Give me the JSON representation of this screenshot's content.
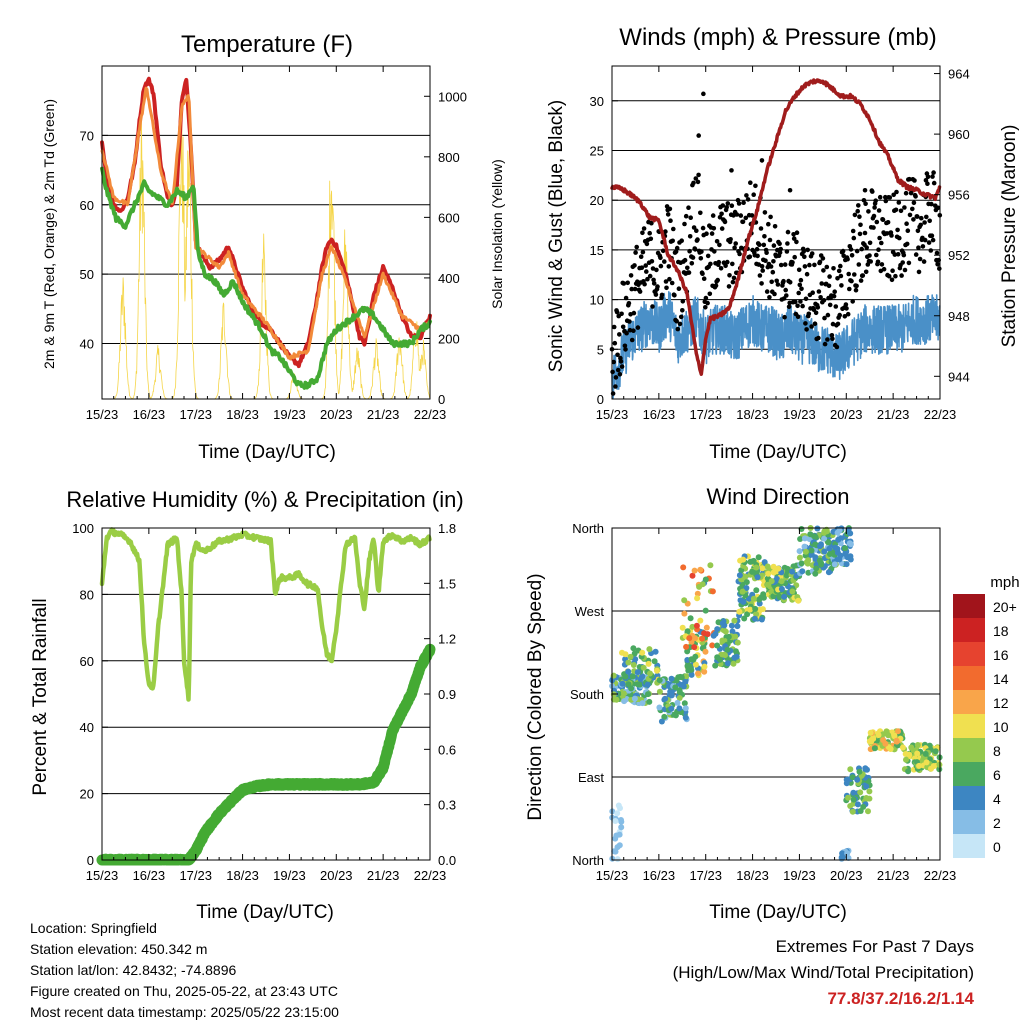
{
  "colors": {
    "temp_2m": "#cc2222",
    "temp_9m": "#f28a3a",
    "dewpoint": "#44aa33",
    "solar": "#f5d547",
    "wind": "#4a90c8",
    "gust": "#000000",
    "pressure": "#a01c1c",
    "rh": "#9acd45",
    "precip": "#44aa33",
    "extremes": "#cc2222"
  },
  "chart_data": [
    {
      "id": "temperature",
      "type": "line",
      "title": "Temperature (F)",
      "xlabel": "Time (Day/UTC)",
      "ylabel": "2m & 9m T (Red, Orange) & 2m Td (Green)",
      "y2label": "Solar Insolation (Yellow)",
      "x_ticks": [
        "15/23",
        "16/23",
        "17/23",
        "18/23",
        "19/23",
        "20/23",
        "21/23",
        "22/23"
      ],
      "xlim": [
        0,
        7
      ],
      "ylim": [
        32,
        80
      ],
      "y_ticks": [
        40,
        50,
        60,
        70
      ],
      "y2lim": [
        0,
        1100
      ],
      "y2_ticks": [
        0,
        200,
        400,
        600,
        800,
        1000
      ],
      "grid": "horizontal",
      "series": [
        {
          "key": "t2m",
          "color": "#cc2222",
          "x": [
            0,
            0.1,
            0.25,
            0.4,
            0.55,
            0.7,
            0.8,
            0.9,
            1.0,
            1.1,
            1.25,
            1.4,
            1.5,
            1.6,
            1.7,
            1.8,
            1.9,
            2.0,
            2.1,
            2.3,
            2.5,
            2.7,
            2.8,
            2.9,
            3.0,
            3.2,
            3.4,
            3.6,
            3.8,
            4.0,
            4.2,
            4.4,
            4.55,
            4.7,
            4.8,
            4.9,
            5.0,
            5.2,
            5.4,
            5.5,
            5.6,
            5.7,
            5.8,
            6.0,
            6.2,
            6.4,
            6.6,
            6.8,
            7.0
          ],
          "y": [
            69,
            64,
            60,
            59,
            61,
            66,
            72,
            77,
            78,
            76,
            66,
            61,
            60,
            63,
            75,
            78,
            68,
            55,
            53,
            51,
            52,
            54,
            52,
            50,
            48,
            45,
            43,
            42,
            40,
            38,
            37,
            40,
            45,
            51,
            54,
            55,
            54,
            50,
            44,
            41,
            40,
            43,
            47,
            51,
            48,
            44,
            41,
            41,
            44
          ]
        },
        {
          "key": "t9m",
          "color": "#f28a3a",
          "x": [
            0,
            0.25,
            0.55,
            0.8,
            0.95,
            1.25,
            1.5,
            1.7,
            1.85,
            2.0,
            2.5,
            2.7,
            3.0,
            3.5,
            4.0,
            4.4,
            4.7,
            4.9,
            5.2,
            5.6,
            6.0,
            6.4,
            6.8,
            7.0
          ],
          "y": [
            68,
            61,
            60,
            71,
            77,
            65,
            60,
            74,
            76,
            54,
            51,
            53,
            47,
            43,
            38,
            39,
            50,
            54,
            49,
            41,
            50,
            44,
            42,
            43
          ]
        },
        {
          "key": "td",
          "color": "#44aa33",
          "x": [
            0,
            0.1,
            0.3,
            0.5,
            0.7,
            0.9,
            1.0,
            1.2,
            1.4,
            1.6,
            1.8,
            1.95,
            2.05,
            2.2,
            2.4,
            2.6,
            2.8,
            3.0,
            3.2,
            3.4,
            3.6,
            3.8,
            4.0,
            4.2,
            4.4,
            4.6,
            4.8,
            5.0,
            5.2,
            5.4,
            5.6,
            5.8,
            6.0,
            6.2,
            6.4,
            6.6,
            6.8,
            7.0
          ],
          "y": [
            65,
            62,
            58,
            57,
            60,
            63,
            62,
            61,
            60,
            62,
            61,
            63,
            53,
            50,
            49,
            47,
            49,
            46,
            44,
            42,
            39,
            38,
            36,
            34,
            34,
            35,
            40,
            42,
            43,
            44,
            45,
            44,
            42,
            40,
            40,
            40,
            42,
            43
          ]
        }
      ],
      "solar": {
        "color": "#f5d547",
        "y2": "insolation",
        "peaks": [
          [
            0.45,
            430
          ],
          [
            0.85,
            1000
          ],
          [
            1.2,
            180
          ],
          [
            1.7,
            1050
          ],
          [
            1.85,
            950
          ],
          [
            2.6,
            350
          ],
          [
            3.45,
            550
          ],
          [
            4.1,
            100
          ],
          [
            4.9,
            950
          ],
          [
            5.2,
            620
          ],
          [
            5.45,
            180
          ],
          [
            5.85,
            200
          ],
          [
            6.35,
            250
          ],
          [
            6.7,
            300
          ],
          [
            6.85,
            200
          ]
        ]
      }
    },
    {
      "id": "winds",
      "type": "scatter",
      "title": "Winds (mph) & Pressure (mb)",
      "xlabel": "Time (Day/UTC)",
      "ylabel": "Sonic Wind & Gust (Blue, Black)",
      "y2label": "Station Pressure (Maroon)",
      "x_ticks": [
        "15/23",
        "16/23",
        "17/23",
        "18/23",
        "19/23",
        "20/23",
        "21/23",
        "22/23"
      ],
      "xlim": [
        0,
        7
      ],
      "ylim": [
        0,
        33.5
      ],
      "y_ticks": [
        0,
        5,
        10,
        15,
        20,
        25,
        30
      ],
      "y2lim": [
        942.5,
        964.5
      ],
      "y2_ticks": [
        944,
        948,
        952,
        956,
        960,
        964
      ],
      "grid": "horizontal",
      "wind_mean": {
        "color": "#4a90c8",
        "x": [
          0,
          0.2,
          0.4,
          0.6,
          0.8,
          1.0,
          1.2,
          1.4,
          1.6,
          1.8,
          2.0,
          2.2,
          2.4,
          2.6,
          2.8,
          3.0,
          3.2,
          3.4,
          3.6,
          3.8,
          4.0,
          4.2,
          4.4,
          4.6,
          4.8,
          5.0,
          5.2,
          5.4,
          5.6,
          5.8,
          6.0,
          6.2,
          6.4,
          6.6,
          6.8,
          7.0
        ],
        "y": [
          2,
          4,
          6,
          7,
          8,
          7,
          9,
          6,
          7,
          8,
          6,
          7,
          7,
          6,
          7,
          8,
          7,
          7,
          6,
          7,
          6,
          6,
          5,
          5,
          4,
          5,
          6,
          7,
          7,
          7,
          7,
          7,
          8,
          8,
          8,
          8
        ]
      },
      "gust": {
        "color": "#000000",
        "x": [
          0,
          0.2,
          0.4,
          0.6,
          0.8,
          1.0,
          1.2,
          1.4,
          1.6,
          1.8,
          2.0,
          2.2,
          2.4,
          2.6,
          2.8,
          3.0,
          3.2,
          3.4,
          3.6,
          3.8,
          4.0,
          4.2,
          4.4,
          4.6,
          4.8,
          5.0,
          5.2,
          5.4,
          5.6,
          5.8,
          6.0,
          6.2,
          6.4,
          6.6,
          6.8,
          7.0
        ],
        "y": [
          4,
          7,
          10,
          12,
          14,
          13,
          16,
          11,
          15,
          20,
          12,
          15,
          16,
          15,
          17,
          18,
          16,
          14,
          12,
          13,
          12,
          11,
          10,
          10,
          9,
          12,
          15,
          16,
          17,
          16,
          16,
          17,
          18,
          17,
          19,
          17
        ],
        "peaks": [
          [
            1.95,
            30.7
          ],
          [
            1.85,
            26.5
          ],
          [
            2.55,
            23
          ],
          [
            3.2,
            24
          ],
          [
            3.8,
            21
          ],
          [
            5.4,
            21
          ],
          [
            6.7,
            22
          ]
        ]
      },
      "pressure": {
        "color": "#a01c1c",
        "x": [
          0,
          0.2,
          0.4,
          0.6,
          0.8,
          1.0,
          1.2,
          1.4,
          1.6,
          1.8,
          1.9,
          2.0,
          2.1,
          2.3,
          2.5,
          2.7,
          2.9,
          3.1,
          3.3,
          3.5,
          3.7,
          3.9,
          4.1,
          4.3,
          4.5,
          4.7,
          4.9,
          5.1,
          5.3,
          5.5,
          5.7,
          5.9,
          6.1,
          6.3,
          6.5,
          6.7,
          6.9,
          7.0
        ],
        "y": [
          956.5,
          956.4,
          956,
          955.5,
          954.5,
          954.3,
          952,
          951,
          949.5,
          945.5,
          944.1,
          946.5,
          947.8,
          948,
          948.5,
          950.5,
          953,
          955,
          957.5,
          959.5,
          961.5,
          962.5,
          963.2,
          963.5,
          963.5,
          963,
          962.5,
          962.5,
          962,
          961,
          959.5,
          958.5,
          957,
          956.5,
          956.3,
          956,
          955.8,
          956.5
        ]
      }
    },
    {
      "id": "humidity",
      "type": "line",
      "title": "Relative Humidity (%) & Precipitation (in)",
      "xlabel": "Time (Day/UTC)",
      "ylabel": "Percent & Total Rainfall",
      "x_ticks": [
        "15/23",
        "16/23",
        "17/23",
        "18/23",
        "19/23",
        "20/23",
        "21/23",
        "22/23"
      ],
      "xlim": [
        0,
        7
      ],
      "ylim": [
        0,
        100
      ],
      "y_ticks": [
        0,
        20,
        40,
        60,
        80,
        100
      ],
      "y2lim": [
        0,
        1.8
      ],
      "y2_ticks": [
        "0.0",
        "0.3",
        "0.6",
        "0.9",
        "1.2",
        "1.5",
        "1.8"
      ],
      "grid": "horizontal",
      "rh": {
        "color": "#9acd45",
        "x": [
          0,
          0.1,
          0.2,
          0.4,
          0.6,
          0.8,
          0.9,
          1.0,
          1.1,
          1.2,
          1.4,
          1.6,
          1.7,
          1.75,
          1.8,
          1.85,
          1.9,
          2.0,
          2.2,
          2.5,
          2.8,
          3.0,
          3.3,
          3.6,
          3.7,
          3.8,
          4.0,
          4.2,
          4.4,
          4.6,
          4.7,
          4.8,
          4.9,
          5.0,
          5.2,
          5.4,
          5.5,
          5.6,
          5.7,
          5.8,
          5.9,
          6.0,
          6.2,
          6.4,
          6.6,
          6.8,
          7.0
        ],
        "y": [
          83,
          97,
          99,
          98,
          96,
          90,
          65,
          53,
          52,
          70,
          95,
          97,
          80,
          60,
          55,
          48,
          90,
          95,
          93,
          96,
          97,
          98,
          97,
          96,
          80,
          85,
          85,
          86,
          83,
          82,
          70,
          62,
          60,
          70,
          95,
          97,
          83,
          76,
          90,
          97,
          80,
          96,
          98,
          96,
          97,
          95,
          97
        ]
      },
      "precip": {
        "color": "#44aa33",
        "x": [
          0,
          0.5,
          1.0,
          1.5,
          1.85,
          2.0,
          2.2,
          2.5,
          2.8,
          3.0,
          3.3,
          3.6,
          4.0,
          4.5,
          5.0,
          5.5,
          5.8,
          6.0,
          6.2,
          6.4,
          6.6,
          6.8,
          7.0
        ],
        "y": [
          0,
          0,
          0,
          0,
          0,
          0.05,
          0.15,
          0.25,
          0.33,
          0.38,
          0.4,
          0.41,
          0.41,
          0.41,
          0.41,
          0.41,
          0.42,
          0.5,
          0.7,
          0.8,
          0.9,
          1.05,
          1.14
        ]
      }
    },
    {
      "id": "direction",
      "type": "scatter",
      "title": "Wind Direction",
      "xlabel": "Time (Day/UTC)",
      "ylabel": "Direction (Colored By Speed)",
      "x_ticks": [
        "15/23",
        "16/23",
        "17/23",
        "18/23",
        "19/23",
        "20/23",
        "21/23",
        "22/23"
      ],
      "xlim": [
        0,
        7
      ],
      "ylim": [
        0,
        360
      ],
      "y_tick_labels": [
        "North",
        "East",
        "South",
        "West",
        "North"
      ],
      "y_tick_values": [
        0,
        90,
        180,
        270,
        360
      ],
      "grid": "horizontal",
      "legend_title": "mph",
      "legend_placement": "right",
      "legend": [
        {
          "label": "20+",
          "color": "#a1141b"
        },
        {
          "label": "18",
          "color": "#cc2222"
        },
        {
          "label": "16",
          "color": "#e6432f"
        },
        {
          "label": "14",
          "color": "#f26b2e"
        },
        {
          "label": "12",
          "color": "#f9a54a"
        },
        {
          "label": "10",
          "color": "#f0e050"
        },
        {
          "label": "8",
          "color": "#95c94e"
        },
        {
          "label": "6",
          "color": "#4aa860"
        },
        {
          "label": "4",
          "color": "#3d86c2"
        },
        {
          "label": "2",
          "color": "#86bde6"
        },
        {
          "label": "0",
          "color": "#c6e6f7"
        }
      ],
      "clusters": [
        {
          "x": [
            0,
            0.8
          ],
          "y": [
            170,
            200
          ],
          "speed": [
            1,
            9
          ],
          "n": 120
        },
        {
          "x": [
            0.2,
            1.0
          ],
          "y": [
            190,
            230
          ],
          "speed": [
            3,
            10
          ],
          "n": 60
        },
        {
          "x": [
            1.0,
            1.6
          ],
          "y": [
            150,
            200
          ],
          "speed": [
            2,
            8
          ],
          "n": 80
        },
        {
          "x": [
            1.6,
            2.0
          ],
          "y": [
            200,
            250
          ],
          "speed": [
            4,
            12
          ],
          "n": 50
        },
        {
          "x": [
            1.5,
            2.2
          ],
          "y": [
            230,
            320
          ],
          "speed": [
            4,
            16
          ],
          "n": 40
        },
        {
          "x": [
            2.2,
            2.7
          ],
          "y": [
            210,
            260
          ],
          "speed": [
            3,
            9
          ],
          "n": 70
        },
        {
          "x": [
            2.7,
            3.3
          ],
          "y": [
            260,
            330
          ],
          "speed": [
            4,
            11
          ],
          "n": 110
        },
        {
          "x": [
            3.3,
            4.0
          ],
          "y": [
            280,
            320
          ],
          "speed": [
            4,
            10
          ],
          "n": 110
        },
        {
          "x": [
            4.0,
            4.8
          ],
          "y": [
            310,
            360
          ],
          "speed": [
            2,
            9
          ],
          "n": 120
        },
        {
          "x": [
            4.8,
            5.1
          ],
          "y": [
            320,
            360
          ],
          "speed": [
            2,
            6
          ],
          "n": 40
        },
        {
          "x": [
            5.0,
            5.5
          ],
          "y": [
            50,
            100
          ],
          "speed": [
            3,
            8
          ],
          "n": 60
        },
        {
          "x": [
            5.5,
            6.2
          ],
          "y": [
            120,
            140
          ],
          "speed": [
            6,
            12
          ],
          "n": 80
        },
        {
          "x": [
            6.2,
            7.0
          ],
          "y": [
            95,
            125
          ],
          "speed": [
            5,
            11
          ],
          "n": 80
        },
        {
          "x": [
            0,
            0.2
          ],
          "y": [
            0,
            60
          ],
          "speed": [
            0,
            3
          ],
          "n": 20
        },
        {
          "x": [
            4.9,
            5.05
          ],
          "y": [
            0,
            10
          ],
          "speed": [
            1,
            5
          ],
          "n": 15
        }
      ]
    }
  ],
  "station": {
    "location": "Location: Springfield",
    "elevation": "Station elevation: 450.342 m",
    "latlon": "Station lat/lon: 42.8432; -74.8896",
    "created": "Figure created on Thu, 2025-05-22, at 23:43 UTC",
    "latest": "Most recent data timestamp: 2025/05/22 23:15:00"
  },
  "extremes": {
    "title": "Extremes For Past 7 Days",
    "subtitle": "(High/Low/Max Wind/Total Precipitation)",
    "values": "77.8/37.2/16.2/1.14"
  }
}
